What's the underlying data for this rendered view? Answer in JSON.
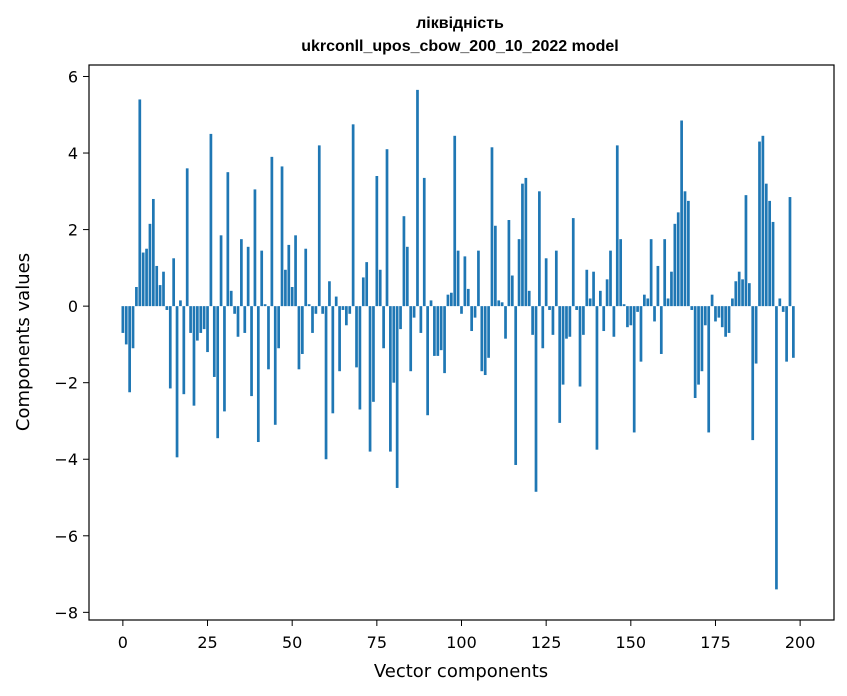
{
  "chart_data": {
    "type": "bar",
    "title": "ліквідність",
    "subtitle": "ukrconll_upos_cbow_200_10_2022 model",
    "xlabel": "Vector components",
    "ylabel": "Components values",
    "xlim": [
      -10,
      210
    ],
    "ylim": [
      -8.2,
      6.3
    ],
    "xticks": [
      0,
      25,
      50,
      75,
      100,
      125,
      150,
      175,
      200
    ],
    "yticks": [
      -8,
      -6,
      -4,
      -2,
      0,
      2,
      4,
      6
    ],
    "xtick_labels": [
      "0",
      "25",
      "50",
      "75",
      "100",
      "125",
      "150",
      "175",
      "200"
    ],
    "ytick_labels": [
      "−8",
      "−6",
      "−4",
      "−2",
      "0",
      "2",
      "4",
      "6"
    ],
    "bar_color": "#1f77b4",
    "values": [
      -0.7,
      -1.0,
      -2.25,
      -1.1,
      0.5,
      5.4,
      1.4,
      1.5,
      2.15,
      2.8,
      1.05,
      0.55,
      0.9,
      -0.1,
      -2.15,
      1.25,
      -3.95,
      0.15,
      -2.3,
      3.6,
      -0.7,
      -2.6,
      -0.9,
      -0.7,
      -0.6,
      -1.2,
      4.5,
      -1.85,
      -3.45,
      1.85,
      -2.75,
      3.5,
      0.4,
      -0.2,
      -0.8,
      1.75,
      -0.7,
      1.55,
      -2.35,
      3.05,
      -3.55,
      1.45,
      0.05,
      -1.65,
      3.9,
      -3.1,
      -1.1,
      3.65,
      0.95,
      1.6,
      0.5,
      1.85,
      -1.65,
      -1.25,
      1.5,
      0.05,
      -0.7,
      -0.2,
      4.2,
      -0.2,
      -4.0,
      0.65,
      -2.8,
      0.25,
      -1.7,
      -0.1,
      -0.5,
      -0.2,
      4.75,
      -1.6,
      -2.7,
      0.75,
      1.15,
      -3.8,
      -2.5,
      3.4,
      0.95,
      -1.1,
      4.1,
      -3.8,
      -2.0,
      -4.75,
      -0.6,
      2.35,
      1.55,
      -1.7,
      -0.3,
      5.65,
      -0.7,
      3.35,
      -2.85,
      0.15,
      -1.3,
      -1.3,
      -1.15,
      -1.75,
      0.3,
      0.35,
      4.45,
      1.45,
      -0.2,
      1.3,
      0.45,
      -0.65,
      -0.3,
      1.45,
      -1.7,
      -1.8,
      -1.35,
      4.15,
      2.1,
      0.15,
      0.1,
      -0.85,
      2.25,
      0.8,
      -4.15,
      1.75,
      3.2,
      3.35,
      0.4,
      -0.75,
      -4.85,
      3.0,
      -1.1,
      1.25,
      -0.1,
      -0.75,
      1.45,
      -3.05,
      -2.05,
      -0.85,
      -0.8,
      2.3,
      -0.1,
      -2.1,
      -0.75,
      0.95,
      0.2,
      0.9,
      -3.75,
      0.4,
      -0.65,
      0.7,
      1.45,
      -0.8,
      4.2,
      1.75,
      0.05,
      -0.55,
      -0.5,
      -3.3,
      -0.15,
      -1.45,
      0.3,
      0.2,
      1.75,
      -0.4,
      1.05,
      -1.25,
      1.75,
      0.2,
      0.9,
      2.15,
      2.45,
      4.85,
      3.0,
      2.75,
      -0.1,
      -2.4,
      -2.05,
      -1.7,
      -0.5,
      -3.3,
      0.3,
      -0.4,
      -0.3,
      -0.55,
      -0.8,
      -0.7,
      0.2,
      0.65,
      0.9,
      0.7,
      2.9,
      0.6,
      -3.5,
      -1.5,
      4.3,
      4.45,
      3.2,
      2.75,
      2.2,
      -7.4,
      0.2,
      -0.15,
      -1.45,
      2.85,
      -1.35
    ]
  }
}
